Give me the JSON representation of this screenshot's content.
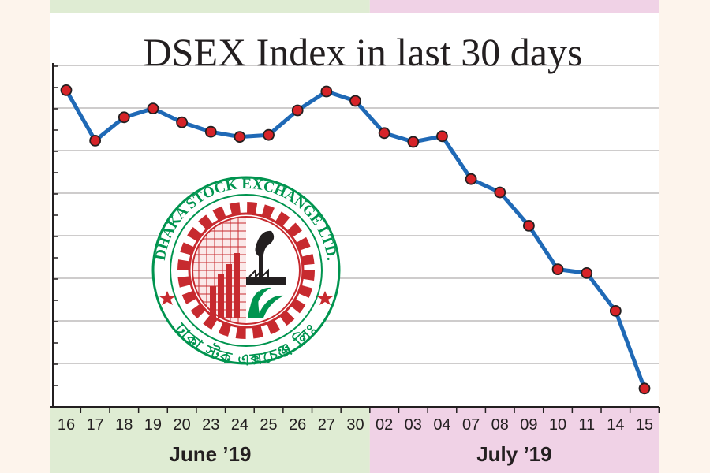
{
  "chart_data": {
    "type": "line",
    "title": "DSEX Index in last 30 days",
    "xlabel": "",
    "ylabel": "",
    "categories": [
      "16",
      "17",
      "18",
      "19",
      "20",
      "23",
      "24",
      "25",
      "26",
      "27",
      "30",
      "02",
      "03",
      "04",
      "07",
      "08",
      "09",
      "10",
      "11",
      "14",
      "15"
    ],
    "values": [
      5437,
      5357,
      5394,
      5408,
      5386,
      5371,
      5363,
      5366,
      5405,
      5435,
      5420,
      5369,
      5355,
      5364,
      5296,
      5275,
      5222,
      5153,
      5147,
      5087,
      4964
    ],
    "ylim": [
      4935,
      5475
    ],
    "grid": true,
    "y_tick_labels_shown": false,
    "months": [
      {
        "label": "June ’19",
        "color": "#dfecd3",
        "from": 0,
        "to": 10
      },
      {
        "label": "July ’19",
        "color": "#f0d2e6",
        "from": 11,
        "to": 20
      }
    ],
    "line_color": "#1f69b6",
    "marker_color": "#d62328"
  },
  "logo": {
    "text_en": "DHAKA STOCK EXCHANGE LTD.",
    "text_bn": "ঢাকা স্টক এক্সচেঞ্জ লিঃ",
    "ring_color": "#00944f",
    "gear_color": "#c72a2f"
  }
}
